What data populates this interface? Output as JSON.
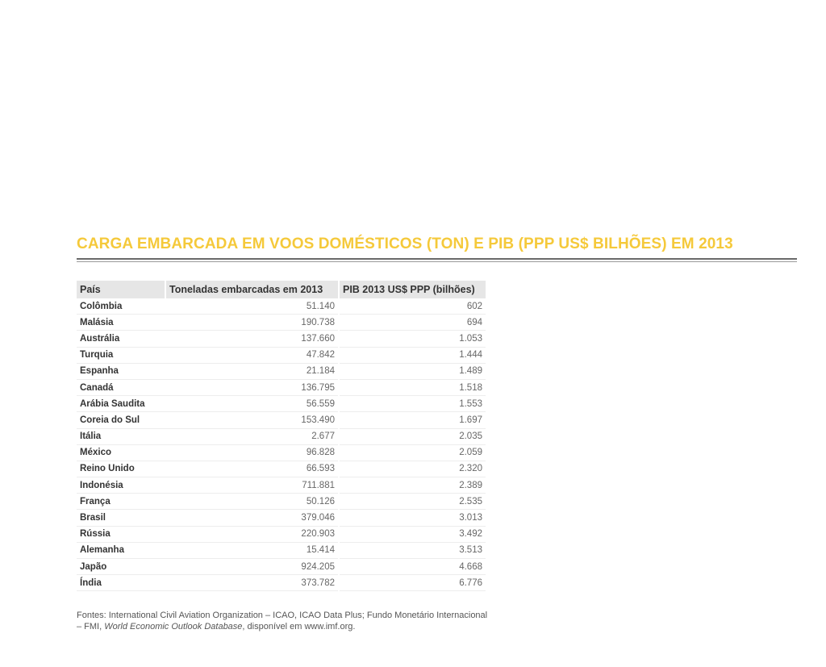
{
  "title": "CARGA EMBARCADA EM VOOS DOMÉSTICOS (TON) E PIB (PPP US$ BILHÕES) EM 2013",
  "table": {
    "headers": [
      "País",
      "Toneladas embarcadas em 2013",
      "PIB 2013 US$ PPP (bilhões)"
    ],
    "rows": [
      [
        "Colômbia",
        "51.140",
        "602"
      ],
      [
        "Malásia",
        "190.738",
        "694"
      ],
      [
        "Austrália",
        "137.660",
        "1.053"
      ],
      [
        "Turquia",
        "47.842",
        "1.444"
      ],
      [
        "Espanha",
        "21.184",
        "1.489"
      ],
      [
        "Canadá",
        "136.795",
        "1.518"
      ],
      [
        "Arábia Saudita",
        "56.559",
        "1.553"
      ],
      [
        "Coreia do Sul",
        "153.490",
        "1.697"
      ],
      [
        "Itália",
        "2.677",
        "2.035"
      ],
      [
        "México",
        "96.828",
        "2.059"
      ],
      [
        "Reino Unido",
        "66.593",
        "2.320"
      ],
      [
        "Indonésia",
        "711.881",
        "2.389"
      ],
      [
        "França",
        "50.126",
        "2.535"
      ],
      [
        "Brasil",
        "379.046",
        "3.013"
      ],
      [
        "Rússia",
        "220.903",
        "3.492"
      ],
      [
        "Alemanha",
        "15.414",
        "3.513"
      ],
      [
        "Japão",
        "924.205",
        "4.668"
      ],
      [
        "Índia",
        "373.782",
        "6.776"
      ]
    ]
  },
  "source": {
    "line1": "Fontes: International Civil Aviation Organization – ICAO, ICAO Data Plus; Fundo Monetário Internacional",
    "line2_prefix": "– FMI, ",
    "line2_italic": "World Economic Outlook Database",
    "line2_suffix": ", disponível em www.imf.org."
  },
  "colors": {
    "title": "#f5c93a",
    "header_bg": "#e6e6e6"
  }
}
